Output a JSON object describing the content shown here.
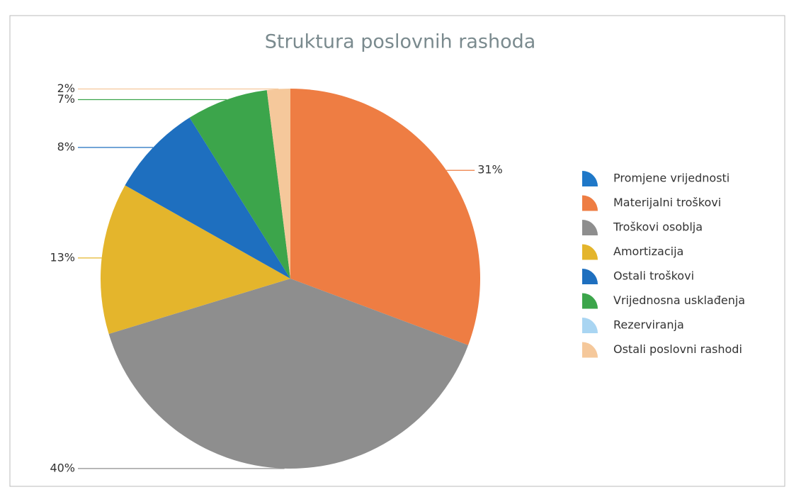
{
  "chart_data": {
    "type": "pie",
    "title": "Struktura poslovnih rashoda",
    "categories": [
      "Promjene vrijednosti",
      "Materijalni troškovi",
      "Troškovi osoblja",
      "Amortizacija",
      "Ostali troškovi",
      "Vrijednosna usklađenja",
      "Rezerviranja",
      "Ostali poslovni rashodi"
    ],
    "values": [
      0,
      31,
      40,
      13,
      8,
      7,
      0,
      2
    ],
    "value_labels": [
      null,
      "31%",
      "40%",
      "13%",
      "8%",
      "7%",
      null,
      "2%"
    ],
    "colors": [
      "#1f78c8",
      "#ee7d43",
      "#8e8e8e",
      "#e4b52c",
      "#1e6fbf",
      "#3ca54b",
      "#a9d5f2",
      "#f5c89b"
    ],
    "legend": "right"
  }
}
